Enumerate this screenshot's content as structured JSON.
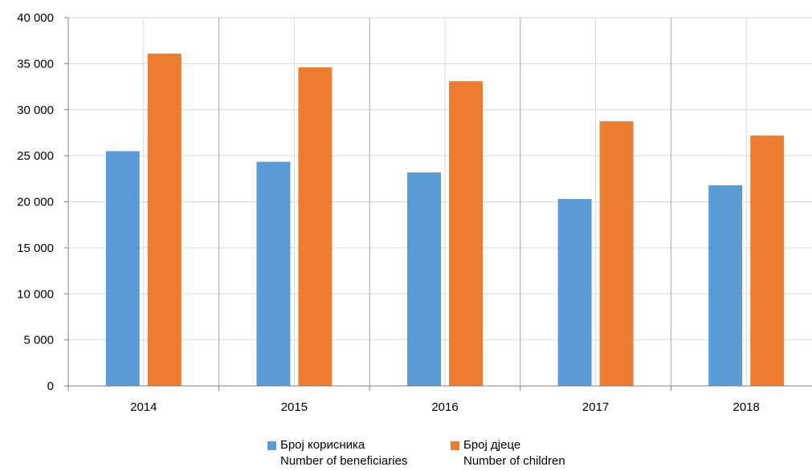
{
  "chart_data": {
    "type": "bar",
    "categories": [
      "2014",
      "2015",
      "2016",
      "2017",
      "2018"
    ],
    "series": [
      {
        "name": "Број корисника",
        "name_en": "Number of beneficiaries",
        "color": "#5b9bd5",
        "values": [
          25500,
          24350,
          23200,
          20300,
          21800
        ]
      },
      {
        "name": "Број дјеце",
        "name_en": "Number of children",
        "color": "#ed7d31",
        "values": [
          36100,
          34600,
          33100,
          28750,
          27200
        ]
      }
    ],
    "ylim": [
      0,
      40000
    ],
    "ytick_values": [
      0,
      5000,
      10000,
      15000,
      20000,
      25000,
      30000,
      35000,
      40000
    ],
    "ytick_labels": [
      "0",
      "5 000",
      "10 000",
      "15 000",
      "20 000",
      "25 000",
      "30 000",
      "35 000",
      "40 000"
    ],
    "grid": true,
    "legend_position": "bottom-center",
    "title": "",
    "xlabel": "",
    "ylabel": ""
  }
}
